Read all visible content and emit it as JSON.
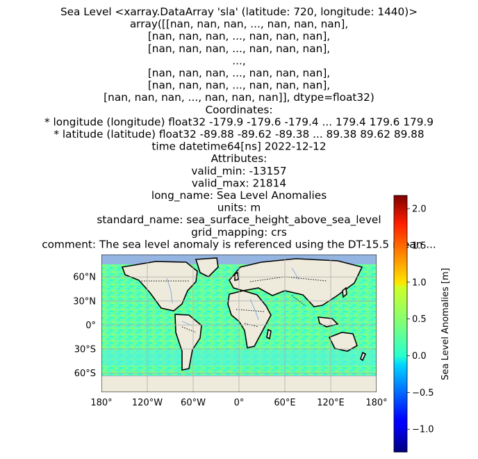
{
  "chart_data": {
    "type": "heatmap",
    "title_lines": [
      "Sea Level <xarray.DataArray 'sla' (latitude: 720, longitude: 1440)>",
      "array([[nan, nan, nan, ..., nan, nan, nan],",
      "[nan, nan, nan, ..., nan, nan, nan],",
      "[nan, nan, nan, ..., nan, nan, nan],",
      "...,",
      "[nan, nan, nan, ..., nan, nan, nan],",
      "[nan, nan, nan, ..., nan, nan, nan],",
      "[nan, nan, nan, ..., nan, nan, nan]], dtype=float32)",
      "Coordinates:",
      "* longitude  (longitude) float32 -179.9 -179.6 -179.4 ... 179.4 179.6 179.9",
      "* latitude   (latitude) float32 -89.88 -89.62 -89.38 ... 89.38 89.62 89.88",
      "time       datetime64[ns] 2022-12-12",
      "Attributes:",
      "valid_min:      -13157",
      "valid_max:      21814",
      "long_name:      Sea Level Anomalies",
      "units:          m",
      "standard_name:  sea_surface_height_above_sea_level",
      "grid_mapping:   crs",
      "comment:        The sea level anomaly is referenced using the DT-15.5 mean ..."
    ],
    "x_ticks": [
      {
        "value": -180,
        "label": "180°"
      },
      {
        "value": -120,
        "label": "120°W"
      },
      {
        "value": -60,
        "label": "60°W"
      },
      {
        "value": 0,
        "label": "0°"
      },
      {
        "value": 60,
        "label": "60°E"
      },
      {
        "value": 120,
        "label": "120°E"
      },
      {
        "value": 180,
        "label": "180°"
      }
    ],
    "y_ticks": [
      {
        "value": 60,
        "label": "60°N"
      },
      {
        "value": 30,
        "label": "30°N"
      },
      {
        "value": 0,
        "label": "0°"
      },
      {
        "value": -30,
        "label": "30°S"
      },
      {
        "value": -60,
        "label": "60°S"
      }
    ],
    "xlim": [
      -180,
      180
    ],
    "ylim": [
      -84,
      88
    ],
    "grid": true,
    "colorbar": {
      "label": "Sea Level Anomalies [m]",
      "colormap": "jet",
      "range": [
        -1.31,
        2.18
      ],
      "ticks": [
        -1.0,
        -0.5,
        0.0,
        0.5,
        1.0,
        1.5,
        2.0
      ],
      "tick_labels": [
        "−1.0",
        "−0.5",
        "0.0",
        "0.5",
        "1.0",
        "1.5",
        "2.0"
      ]
    },
    "colors": {
      "ocean_fill": "#94b5e2",
      "land": "#efebdc",
      "anomaly_main": "#66ffa0"
    }
  }
}
